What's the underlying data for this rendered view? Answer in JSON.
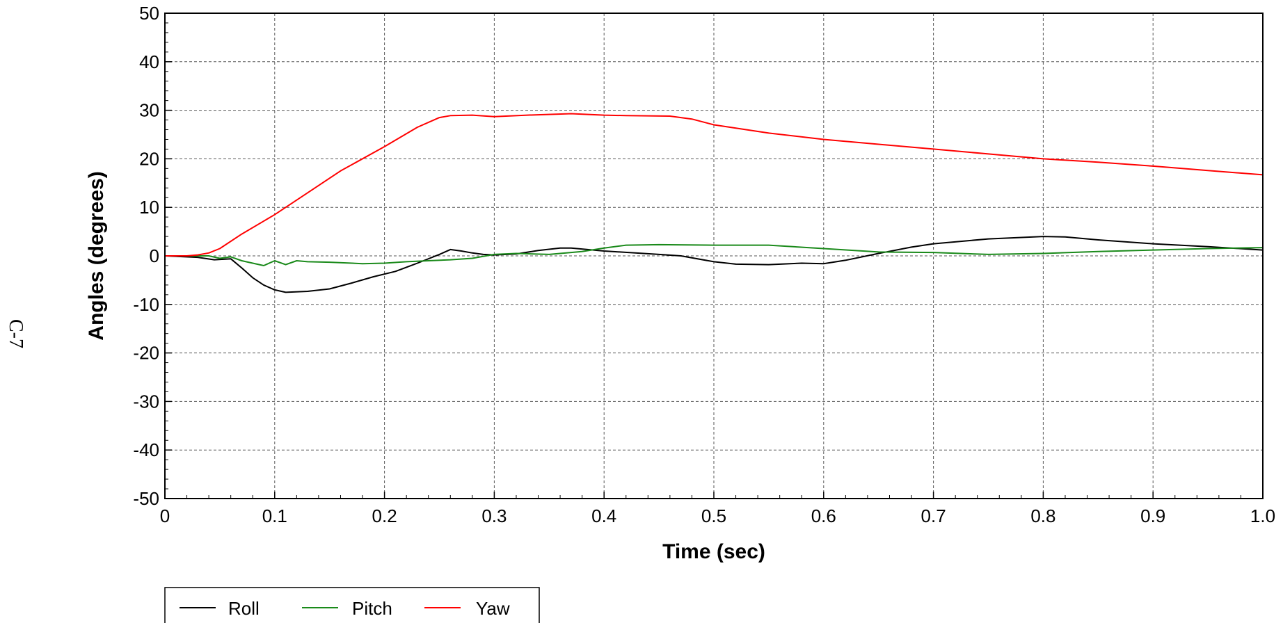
{
  "page": {
    "side_label": "C-7"
  },
  "chart_data": {
    "type": "line",
    "title": "",
    "xlabel": "Time (sec)",
    "ylabel": "Angles (degrees)",
    "xlim": [
      0,
      1.0
    ],
    "ylim": [
      -50,
      50
    ],
    "x_ticks": [
      0,
      0.1,
      0.2,
      0.3,
      0.4,
      0.5,
      0.6,
      0.7,
      0.8,
      0.9,
      1.0
    ],
    "x_tick_labels": [
      "0",
      "0.1",
      "0.2",
      "0.3",
      "0.4",
      "0.5",
      "0.6",
      "0.7",
      "0.8",
      "0.9",
      "1.0"
    ],
    "y_ticks": [
      50,
      40,
      30,
      20,
      10,
      0,
      -10,
      -20,
      -30,
      -40,
      -50
    ],
    "y_tick_labels": [
      "50",
      "40",
      "30",
      "20",
      "10",
      "0",
      "-10",
      "-20",
      "-30",
      "-40",
      "-50"
    ],
    "grid": true,
    "legend_position": "bottom-left",
    "series": [
      {
        "name": "Roll",
        "color": "#000000",
        "x": [
          0,
          0.03,
          0.045,
          0.06,
          0.07,
          0.08,
          0.09,
          0.1,
          0.11,
          0.13,
          0.15,
          0.17,
          0.19,
          0.21,
          0.23,
          0.25,
          0.26,
          0.27,
          0.28,
          0.29,
          0.3,
          0.32,
          0.34,
          0.36,
          0.37,
          0.4,
          0.45,
          0.47,
          0.5,
          0.52,
          0.55,
          0.58,
          0.6,
          0.62,
          0.65,
          0.68,
          0.7,
          0.75,
          0.8,
          0.82,
          0.85,
          0.9,
          0.95,
          1.0
        ],
        "y": [
          0,
          -0.3,
          -0.8,
          -0.6,
          -2.5,
          -4.5,
          -6.0,
          -7.0,
          -7.5,
          -7.3,
          -6.8,
          -5.6,
          -4.3,
          -3.2,
          -1.5,
          0.3,
          1.3,
          1.0,
          0.6,
          0.3,
          0.2,
          0.4,
          1.1,
          1.6,
          1.6,
          1.0,
          0.3,
          0.0,
          -1.2,
          -1.7,
          -1.8,
          -1.5,
          -1.6,
          -0.9,
          0.5,
          1.8,
          2.5,
          3.5,
          4.0,
          3.9,
          3.3,
          2.5,
          1.9,
          1.2
        ]
      },
      {
        "name": "Pitch",
        "color": "#1a8a1a",
        "x": [
          0,
          0.04,
          0.05,
          0.06,
          0.07,
          0.08,
          0.09,
          0.1,
          0.11,
          0.12,
          0.13,
          0.15,
          0.18,
          0.2,
          0.22,
          0.24,
          0.26,
          0.28,
          0.3,
          0.32,
          0.35,
          0.38,
          0.4,
          0.42,
          0.45,
          0.5,
          0.55,
          0.6,
          0.65,
          0.7,
          0.75,
          0.8,
          0.85,
          0.9,
          0.95,
          1.0
        ],
        "y": [
          0,
          0,
          -0.5,
          -0.2,
          -1.0,
          -1.5,
          -2.0,
          -1.0,
          -1.8,
          -1.0,
          -1.2,
          -1.3,
          -1.6,
          -1.5,
          -1.2,
          -1.0,
          -0.8,
          -0.5,
          0.3,
          0.5,
          0.3,
          0.9,
          1.6,
          2.2,
          2.3,
          2.2,
          2.2,
          1.5,
          0.8,
          0.7,
          0.3,
          0.5,
          0.9,
          1.2,
          1.5,
          1.7
        ]
      },
      {
        "name": "Yaw",
        "color": "#ff0000",
        "x": [
          0,
          0.02,
          0.03,
          0.04,
          0.05,
          0.07,
          0.1,
          0.13,
          0.16,
          0.2,
          0.23,
          0.25,
          0.26,
          0.28,
          0.3,
          0.33,
          0.37,
          0.4,
          0.42,
          0.46,
          0.48,
          0.5,
          0.55,
          0.6,
          0.65,
          0.7,
          0.75,
          0.8,
          0.85,
          0.9,
          0.95,
          1.0
        ],
        "y": [
          0,
          0,
          0.2,
          0.6,
          1.5,
          4.5,
          8.5,
          13.0,
          17.5,
          22.5,
          26.5,
          28.5,
          28.9,
          29.0,
          28.7,
          29.0,
          29.3,
          29.0,
          28.9,
          28.8,
          28.2,
          27.0,
          25.3,
          24.0,
          23.0,
          22.0,
          21.0,
          20.0,
          19.3,
          18.5,
          17.6,
          16.7
        ]
      }
    ]
  }
}
